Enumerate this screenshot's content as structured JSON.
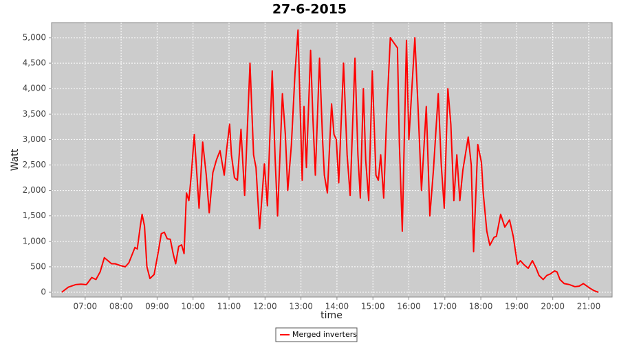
{
  "chart_data": {
    "type": "line",
    "title": "27-6-2015",
    "x_label": "time",
    "y_label": "Watt",
    "x": [
      "06:21",
      "06:32",
      "06:44",
      "06:53",
      "07:02",
      "07:11",
      "07:18",
      "07:25",
      "07:32",
      "07:38",
      "07:44",
      "07:50",
      "08:00",
      "08:07",
      "08:13",
      "08:23",
      "08:27",
      "08:32",
      "08:35",
      "08:39",
      "08:43",
      "08:48",
      "08:55",
      "09:02",
      "09:07",
      "09:12",
      "09:17",
      "09:22",
      "09:27",
      "09:31",
      "09:36",
      "09:41",
      "09:45",
      "09:49",
      "09:53",
      "09:57",
      "10:02",
      "10:07",
      "10:10",
      "10:16",
      "10:22",
      "10:27",
      "10:33",
      "10:39",
      "10:45",
      "10:52",
      "10:56",
      "11:01",
      "11:04",
      "11:09",
      "11:14",
      "11:20",
      "11:26",
      "11:35",
      "11:41",
      "11:45",
      "11:51",
      "11:59",
      "12:04",
      "12:12",
      "12:17",
      "12:21",
      "12:29",
      "12:34",
      "12:38",
      "12:44",
      "12:50",
      "12:55",
      "12:59",
      "13:02",
      "13:05",
      "13:09",
      "13:16",
      "13:20",
      "13:24",
      "13:31",
      "13:36",
      "13:39",
      "13:44",
      "13:51",
      "13:55",
      "13:59",
      "14:03",
      "14:11",
      "14:17",
      "14:22",
      "14:30",
      "14:35",
      "14:39",
      "14:44",
      "14:48",
      "14:53",
      "14:59",
      "15:05",
      "15:09",
      "15:13",
      "15:18",
      "15:23",
      "15:29",
      "15:35",
      "15:41",
      "15:44",
      "15:49",
      "15:56",
      "16:00",
      "16:10",
      "16:15",
      "16:21",
      "16:29",
      "16:35",
      "16:41",
      "16:49",
      "16:54",
      "16:59",
      "17:05",
      "17:10",
      "17:15",
      "17:20",
      "17:25",
      "17:30",
      "17:39",
      "17:44",
      "17:48",
      "17:55",
      "18:01",
      "18:04",
      "18:10",
      "18:15",
      "18:22",
      "18:26",
      "18:33",
      "18:40",
      "18:48",
      "18:54",
      "19:01",
      "19:06",
      "19:12",
      "19:19",
      "19:26",
      "19:32",
      "19:37",
      "19:44",
      "19:50",
      "19:56",
      "20:03",
      "20:07",
      "20:12",
      "20:19",
      "20:28",
      "20:37",
      "20:44",
      "20:51",
      "20:56",
      "21:02",
      "21:09",
      "21:16"
    ],
    "series": [
      {
        "name": "Merged inverters",
        "color": "#ff0000",
        "values": [
          0,
          100,
          150,
          160,
          150,
          290,
          250,
          400,
          680,
          620,
          560,
          560,
          520,
          500,
          580,
          880,
          850,
          1300,
          1530,
          1300,
          500,
          270,
          350,
          800,
          1150,
          1180,
          1050,
          1040,
          750,
          560,
          900,
          930,
          760,
          1950,
          1800,
          2300,
          3100,
          2200,
          1650,
          2950,
          2300,
          1560,
          2350,
          2600,
          2780,
          2300,
          2800,
          3300,
          2700,
          2250,
          2200,
          3200,
          1900,
          4500,
          2700,
          2450,
          1250,
          2520,
          1700,
          4350,
          2600,
          1500,
          3900,
          3100,
          2000,
          2900,
          4300,
          5150,
          3500,
          2200,
          3650,
          2450,
          4750,
          3400,
          2300,
          4600,
          3000,
          2300,
          1950,
          3700,
          3100,
          3000,
          2150,
          4500,
          2700,
          1900,
          4600,
          2700,
          1850,
          4000,
          2600,
          1800,
          4350,
          2300,
          2200,
          2700,
          1850,
          3500,
          5000,
          4900,
          4800,
          2950,
          1200,
          4950,
          3000,
          5000,
          3700,
          2000,
          3650,
          1500,
          2400,
          3900,
          2500,
          1650,
          4000,
          3300,
          1800,
          2700,
          1800,
          2400,
          3050,
          2500,
          800,
          2900,
          2550,
          1950,
          1200,
          920,
          1080,
          1100,
          1530,
          1280,
          1420,
          1100,
          550,
          620,
          540,
          470,
          620,
          480,
          330,
          250,
          330,
          360,
          420,
          400,
          250,
          170,
          150,
          110,
          120,
          170,
          130,
          80,
          30,
          0
        ]
      }
    ],
    "xlim": [
      "06:04",
      "21:39"
    ],
    "xticks": [
      "07:00",
      "08:00",
      "09:00",
      "10:00",
      "11:00",
      "12:00",
      "13:00",
      "14:00",
      "15:00",
      "16:00",
      "17:00",
      "18:00",
      "19:00",
      "20:00",
      "21:00"
    ],
    "ylim": [
      -94,
      5296
    ],
    "yticks": [
      0,
      500,
      {
        "value": 1000,
        "label": "1,000"
      },
      {
        "value": 1500,
        "label": "1,500"
      },
      {
        "value": 2000,
        "label": "2,000"
      },
      {
        "value": 2500,
        "label": "2,500"
      },
      {
        "value": 3000,
        "label": "3,000"
      },
      {
        "value": 3500,
        "label": "3,500"
      },
      {
        "value": 4000,
        "label": "4,000"
      },
      {
        "value": 4500,
        "label": "4,500"
      },
      {
        "value": 5000,
        "label": "5,000"
      }
    ],
    "grid": true,
    "legend": "bottom"
  }
}
